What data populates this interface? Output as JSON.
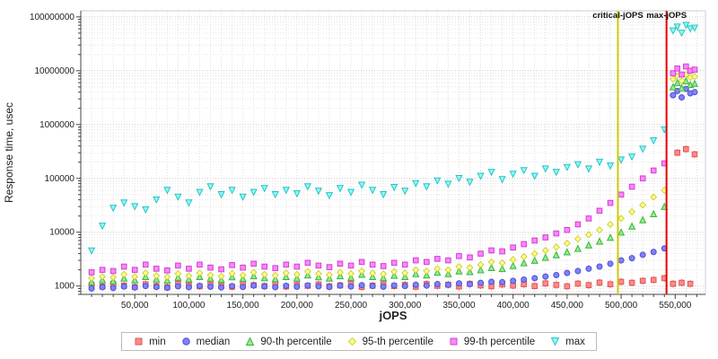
{
  "chart_data": {
    "type": "scatter",
    "title": "",
    "xlabel": "jOPS",
    "ylabel": "Response time, usec",
    "y_scale": "log",
    "grid": true,
    "legend_position": "bottom",
    "xlim": [
      0,
      578000
    ],
    "ylim": [
      700,
      130000000
    ],
    "x_tick_values": [
      50000,
      100000,
      150000,
      200000,
      250000,
      300000,
      350000,
      400000,
      450000,
      500000,
      550000
    ],
    "x_tick_labels": [
      "50,000",
      "100,000",
      "150,000",
      "200,000",
      "250,000",
      "300,000",
      "350,000",
      "400,000",
      "450,000",
      "500,000",
      "550,000"
    ],
    "y_tick_values": [
      1000,
      10000,
      100000,
      1000000,
      10000000,
      100000000
    ],
    "y_tick_labels": [
      "1000",
      "10000",
      "100000",
      "1000000",
      "10000000",
      "100000000"
    ],
    "annotations": [
      {
        "label": "critical-jOPS",
        "x": 497000,
        "color": "#cccc00"
      },
      {
        "label": "max-jOPS",
        "x": 542000,
        "color": "#e60000"
      }
    ],
    "x": [
      10000,
      20000,
      30000,
      40000,
      50000,
      60000,
      70000,
      80000,
      90000,
      100000,
      110000,
      120000,
      130000,
      140000,
      150000,
      160000,
      170000,
      180000,
      190000,
      200000,
      210000,
      220000,
      230000,
      240000,
      250000,
      260000,
      270000,
      280000,
      290000,
      300000,
      310000,
      320000,
      330000,
      340000,
      350000,
      360000,
      370000,
      380000,
      390000,
      400000,
      410000,
      420000,
      430000,
      440000,
      450000,
      460000,
      470000,
      480000,
      490000,
      500000,
      510000,
      520000,
      530000,
      540000,
      548000,
      552000,
      556000,
      560000,
      564000,
      568000
    ],
    "series": [
      {
        "name": "min",
        "marker": "square",
        "fill": "#ff8a8a",
        "stroke": "#e05555",
        "values": [
          1050,
          980,
          1100,
          1020,
          960,
          1080,
          1000,
          950,
          1100,
          1030,
          990,
          1060,
          1010,
          970,
          1090,
          1040,
          1000,
          1120,
          980,
          1050,
          1010,
          1070,
          990,
          1030,
          1100,
          960,
          1020,
          1080,
          1000,
          1050,
          970,
          1090,
          1010,
          1060,
          980,
          1100,
          1030,
          990,
          1070,
          1020,
          1080,
          1000,
          1120,
          1050,
          990,
          1110,
          1040,
          1160,
          1080,
          1200,
          1150,
          1250,
          1300,
          1400,
          1100,
          300000,
          1150,
          350000,
          1100,
          280000
        ]
      },
      {
        "name": "median",
        "marker": "circle",
        "fill": "#8080ff",
        "stroke": "#5050cc",
        "values": [
          900,
          950,
          920,
          980,
          940,
          1000,
          960,
          930,
          990,
          950,
          1010,
          970,
          940,
          1000,
          960,
          1020,
          980,
          950,
          1010,
          970,
          1030,
          990,
          960,
          1020,
          980,
          1040,
          1000,
          970,
          1030,
          1000,
          1060,
          1020,
          1090,
          1050,
          1120,
          1080,
          1150,
          1200,
          1180,
          1250,
          1320,
          1400,
          1500,
          1600,
          1750,
          1900,
          2100,
          2300,
          2600,
          3000,
          3300,
          3800,
          4300,
          5000,
          3500000,
          4200000,
          3200000,
          4600000,
          3800000,
          4000000
        ]
      },
      {
        "name": "90-th percentile",
        "marker": "triangle-up",
        "fill": "#90ee90",
        "stroke": "#3cb43c",
        "values": [
          1200,
          1300,
          1250,
          1400,
          1300,
          1500,
          1350,
          1280,
          1450,
          1350,
          1500,
          1400,
          1320,
          1480,
          1380,
          1550,
          1420,
          1360,
          1500,
          1400,
          1600,
          1480,
          1400,
          1550,
          1450,
          1650,
          1500,
          1430,
          1580,
          1500,
          1700,
          1600,
          1800,
          1700,
          1900,
          1850,
          2000,
          2200,
          2100,
          2400,
          2700,
          3000,
          3400,
          3800,
          4300,
          5000,
          5800,
          6800,
          8000,
          10000,
          13000,
          17000,
          22000,
          30000,
          5000000,
          6000000,
          4800000,
          6500000,
          5500000,
          5800000
        ]
      },
      {
        "name": "95-th percentile",
        "marker": "diamond",
        "fill": "#ffff85",
        "stroke": "#cfcf40",
        "values": [
          1400,
          1500,
          1450,
          1650,
          1500,
          1750,
          1550,
          1480,
          1700,
          1550,
          1750,
          1600,
          1520,
          1720,
          1600,
          1800,
          1650,
          1580,
          1750,
          1650,
          1850,
          1700,
          1620,
          1800,
          1700,
          1900,
          1750,
          1680,
          1850,
          1750,
          2000,
          1900,
          2100,
          2000,
          2300,
          2200,
          2500,
          2800,
          2700,
          3100,
          3500,
          4000,
          4600,
          5300,
          6200,
          7500,
          9000,
          11000,
          14000,
          18000,
          24000,
          32000,
          45000,
          60000,
          7000000,
          8000000,
          6500000,
          8500000,
          7500000,
          7800000
        ]
      },
      {
        "name": "99-th percentile",
        "marker": "square",
        "fill": "#ff85ff",
        "stroke": "#cf40cf",
        "values": [
          1800,
          2000,
          1900,
          2300,
          2000,
          2500,
          2100,
          1950,
          2400,
          2100,
          2500,
          2200,
          2050,
          2450,
          2200,
          2600,
          2300,
          2150,
          2500,
          2300,
          2700,
          2400,
          2250,
          2600,
          2400,
          2800,
          2500,
          2350,
          2700,
          2500,
          3000,
          2800,
          3200,
          3000,
          3600,
          3400,
          4000,
          4600,
          4400,
          5200,
          6000,
          7000,
          8000,
          9500,
          11000,
          14000,
          18000,
          25000,
          35000,
          50000,
          70000,
          100000,
          140000,
          190000,
          9000000,
          11000000,
          8500000,
          12000000,
          10000000,
          10500000
        ]
      },
      {
        "name": "max",
        "marker": "triangle-down",
        "fill": "#85ffff",
        "stroke": "#30c0c0",
        "values": [
          4500,
          13000,
          28000,
          35000,
          30000,
          26000,
          40000,
          60000,
          45000,
          35000,
          55000,
          70000,
          50000,
          60000,
          45000,
          55000,
          65000,
          50000,
          60000,
          52000,
          70000,
          58000,
          48000,
          65000,
          55000,
          75000,
          60000,
          50000,
          68000,
          58000,
          80000,
          70000,
          90000,
          78000,
          100000,
          85000,
          110000,
          130000,
          95000,
          120000,
          140000,
          110000,
          150000,
          130000,
          160000,
          180000,
          150000,
          200000,
          170000,
          220000,
          250000,
          350000,
          500000,
          800000,
          55000000,
          65000000,
          50000000,
          70000000,
          60000000,
          62000000
        ]
      }
    ]
  }
}
